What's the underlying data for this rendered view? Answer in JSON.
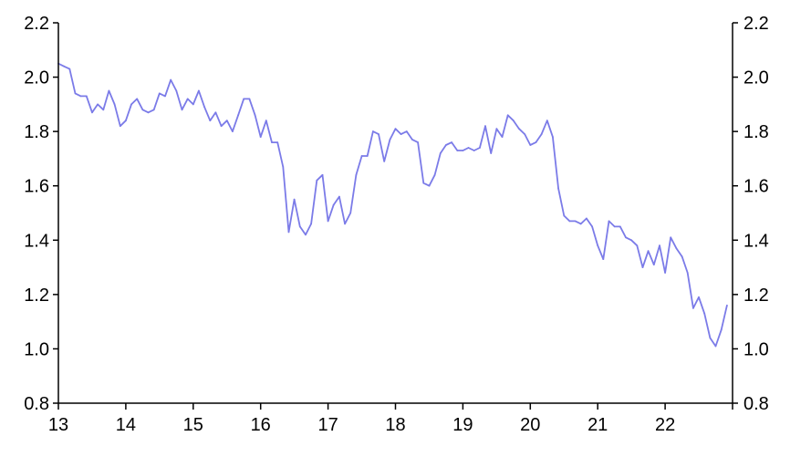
{
  "chart_data": {
    "type": "line",
    "title": "",
    "xlabel": "",
    "ylabel": "",
    "xlim": [
      2013.0,
      2023.0
    ],
    "ylim": [
      0.8,
      2.2
    ],
    "x_ticks": [
      {
        "value": 2013,
        "label": "13"
      },
      {
        "value": 2014,
        "label": "14"
      },
      {
        "value": 2015,
        "label": "15"
      },
      {
        "value": 2016,
        "label": "16"
      },
      {
        "value": 2017,
        "label": "17"
      },
      {
        "value": 2018,
        "label": "18"
      },
      {
        "value": 2019,
        "label": "19"
      },
      {
        "value": 2020,
        "label": "20"
      },
      {
        "value": 2021,
        "label": "21"
      },
      {
        "value": 2022,
        "label": "22"
      }
    ],
    "y_ticks": [
      {
        "value": 0.8,
        "label": "0.8"
      },
      {
        "value": 1.0,
        "label": "1.0"
      },
      {
        "value": 1.2,
        "label": "1.2"
      },
      {
        "value": 1.4,
        "label": "1.4"
      },
      {
        "value": 1.6,
        "label": "1.6"
      },
      {
        "value": 1.8,
        "label": "1.8"
      },
      {
        "value": 2.0,
        "label": "2.0"
      },
      {
        "value": 2.2,
        "label": "2.2"
      }
    ],
    "grid": false,
    "series": [
      {
        "color": "#7b7be8",
        "x": [
          2013.0,
          2013.083,
          2013.167,
          2013.25,
          2013.333,
          2013.417,
          2013.5,
          2013.583,
          2013.667,
          2013.75,
          2013.833,
          2013.917,
          2014.0,
          2014.083,
          2014.167,
          2014.25,
          2014.333,
          2014.417,
          2014.5,
          2014.583,
          2014.667,
          2014.75,
          2014.833,
          2014.917,
          2015.0,
          2015.083,
          2015.167,
          2015.25,
          2015.333,
          2015.417,
          2015.5,
          2015.583,
          2015.667,
          2015.75,
          2015.833,
          2015.917,
          2016.0,
          2016.083,
          2016.167,
          2016.25,
          2016.333,
          2016.417,
          2016.5,
          2016.583,
          2016.667,
          2016.75,
          2016.833,
          2016.917,
          2017.0,
          2017.083,
          2017.167,
          2017.25,
          2017.333,
          2017.417,
          2017.5,
          2017.583,
          2017.667,
          2017.75,
          2017.833,
          2017.917,
          2018.0,
          2018.083,
          2018.167,
          2018.25,
          2018.333,
          2018.417,
          2018.5,
          2018.583,
          2018.667,
          2018.75,
          2018.833,
          2018.917,
          2019.0,
          2019.083,
          2019.167,
          2019.25,
          2019.333,
          2019.417,
          2019.5,
          2019.583,
          2019.667,
          2019.75,
          2019.833,
          2019.917,
          2020.0,
          2020.083,
          2020.167,
          2020.25,
          2020.333,
          2020.417,
          2020.5,
          2020.583,
          2020.667,
          2020.75,
          2020.833,
          2020.917,
          2021.0,
          2021.083,
          2021.167,
          2021.25,
          2021.333,
          2021.417,
          2021.5,
          2021.583,
          2021.667,
          2021.75,
          2021.833,
          2021.917,
          2022.0,
          2022.083,
          2022.167,
          2022.25,
          2022.333,
          2022.417,
          2022.5,
          2022.583,
          2022.667,
          2022.75,
          2022.833,
          2022.917
        ],
        "y": [
          2.05,
          2.04,
          2.03,
          1.94,
          1.93,
          1.93,
          1.87,
          1.9,
          1.88,
          1.95,
          1.9,
          1.82,
          1.84,
          1.9,
          1.92,
          1.88,
          1.87,
          1.88,
          1.94,
          1.93,
          1.99,
          1.95,
          1.88,
          1.92,
          1.9,
          1.95,
          1.89,
          1.84,
          1.87,
          1.82,
          1.84,
          1.8,
          1.86,
          1.92,
          1.92,
          1.86,
          1.78,
          1.84,
          1.76,
          1.76,
          1.67,
          1.43,
          1.55,
          1.45,
          1.42,
          1.46,
          1.62,
          1.64,
          1.47,
          1.53,
          1.56,
          1.46,
          1.5,
          1.64,
          1.71,
          1.71,
          1.8,
          1.79,
          1.69,
          1.77,
          1.81,
          1.79,
          1.8,
          1.77,
          1.76,
          1.61,
          1.6,
          1.64,
          1.72,
          1.75,
          1.76,
          1.73,
          1.73,
          1.74,
          1.73,
          1.74,
          1.82,
          1.72,
          1.81,
          1.78,
          1.86,
          1.84,
          1.81,
          1.79,
          1.75,
          1.76,
          1.79,
          1.84,
          1.78,
          1.59,
          1.49,
          1.47,
          1.47,
          1.46,
          1.48,
          1.45,
          1.38,
          1.33,
          1.47,
          1.45,
          1.45,
          1.41,
          1.4,
          1.38,
          1.3,
          1.36,
          1.31,
          1.38,
          1.28,
          1.41,
          1.37,
          1.34,
          1.28,
          1.15,
          1.19,
          1.13,
          1.04,
          1.01,
          1.07,
          1.16
        ]
      }
    ]
  }
}
